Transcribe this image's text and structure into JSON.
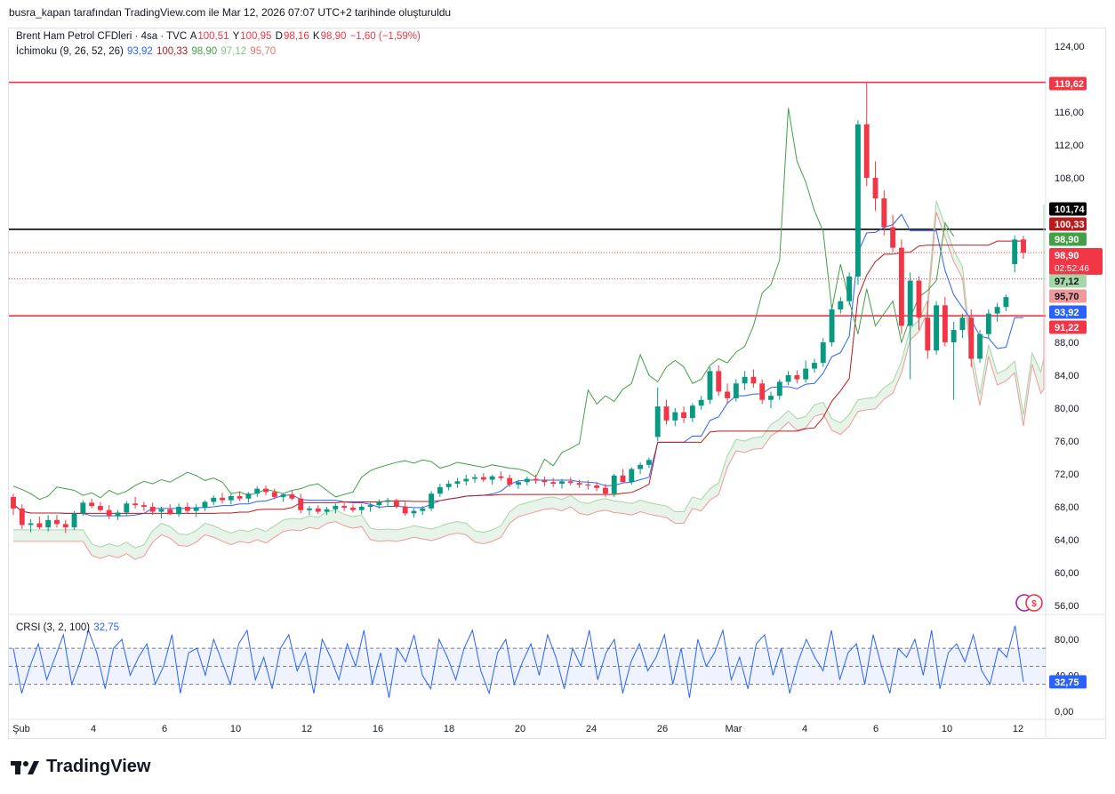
{
  "header": {
    "text": "busra_kapan tarafından TradingView.com ile Mar 12, 2026 07:07 UTC+2 tarihinde oluşturuldu"
  },
  "legend": {
    "symbol": "Brent Ham Petrol CFDleri · 4sa · TVC",
    "open_label": "A",
    "open": "100,51",
    "high_label": "Y",
    "high": "100,95",
    "low_label": "D",
    "low": "98,16",
    "close_label": "K",
    "close": "98,90",
    "change": "−1,60 (−1,59%)",
    "ichimoku_name": "İchimoku (9, 26, 52, 26)",
    "ichimoku_values": [
      "93,92",
      "100,33",
      "98,90",
      "97,12",
      "95,70"
    ]
  },
  "crsi_legend": {
    "name": "CRSI (3, 2, 100)",
    "value": "32,75"
  },
  "colors": {
    "up": "#089981",
    "down": "#f23645",
    "conversion": "#2962ff",
    "base": "#b71c1c",
    "lagging": "#43a047",
    "span_a": "#a5d6a7",
    "span_b": "#ef9a9a",
    "crsi": "#2962ff",
    "hline_red": "#f23645",
    "hline_black": "#000000"
  },
  "price_axis": {
    "ticks": [
      "124,00",
      "116,00",
      "112,00",
      "108,00",
      "88,00",
      "84,00",
      "80,00",
      "76,00",
      "72,00",
      "68,00",
      "64,00",
      "60,00",
      "56,00"
    ]
  },
  "crsi_axis": {
    "ticks": [
      "80,00",
      "40,00",
      "0,00"
    ]
  },
  "badges": [
    {
      "value": "119,62",
      "bg": "#f23645",
      "fg": "#ffffff"
    },
    {
      "value": "101,74",
      "bg": "#000000",
      "fg": "#ffffff"
    },
    {
      "value": "100,33",
      "bg": "#b71c1c",
      "fg": "#ffffff"
    },
    {
      "value": "98,90",
      "bg": "#43a047",
      "fg": "#ffffff"
    },
    {
      "value": "98,90",
      "bg": "#f23645",
      "fg": "#ffffff",
      "sub": "02:52:46"
    },
    {
      "value": "97,12",
      "bg": "#a5d6a7",
      "fg": "#131722"
    },
    {
      "value": "95,70",
      "bg": "#ef9a9a",
      "fg": "#131722"
    },
    {
      "value": "93,92",
      "bg": "#2962ff",
      "fg": "#ffffff"
    },
    {
      "value": "91,22",
      "bg": "#f23645",
      "fg": "#ffffff"
    }
  ],
  "crsi_badge": {
    "value": "32,75"
  },
  "x_axis": {
    "labels": [
      "Şub",
      "4",
      "6",
      "10",
      "12",
      "16",
      "18",
      "20",
      "24",
      "26",
      "Mar",
      "4",
      "6",
      "10",
      "12"
    ]
  },
  "chart_data": {
    "type": "candlestick",
    "symbol": "Brent Ham Petrol CFDleri",
    "timeframe": "4sa",
    "y_range": [
      54,
      126
    ],
    "horizontal_lines": [
      {
        "price": 119.62,
        "color": "#f23645",
        "style": "solid"
      },
      {
        "price": 101.74,
        "color": "#000000",
        "style": "solid"
      },
      {
        "price": 91.22,
        "color": "#f23645",
        "style": "solid"
      },
      {
        "price": 98.9,
        "color": "#f23645",
        "style": "dotted"
      },
      {
        "price": 95.7,
        "color": "#f23645",
        "style": "dotted"
      }
    ],
    "candles": [
      [
        69.2,
        69.6,
        67.0,
        67.8
      ],
      [
        67.8,
        68.3,
        65.3,
        65.8
      ],
      [
        65.8,
        66.5,
        64.9,
        66.0
      ],
      [
        66.0,
        66.8,
        65.3,
        65.5
      ],
      [
        65.5,
        67.0,
        65.0,
        66.4
      ],
      [
        66.4,
        67.0,
        65.5,
        65.9
      ],
      [
        65.9,
        66.4,
        64.8,
        65.5
      ],
      [
        65.5,
        67.5,
        65.2,
        67.2
      ],
      [
        67.2,
        68.8,
        66.9,
        68.5
      ],
      [
        68.5,
        69.0,
        67.8,
        68.1
      ],
      [
        68.1,
        68.6,
        67.4,
        67.6
      ],
      [
        67.6,
        68.2,
        66.5,
        66.9
      ],
      [
        66.9,
        67.6,
        66.4,
        67.3
      ],
      [
        67.3,
        68.7,
        66.9,
        68.4
      ],
      [
        68.4,
        69.2,
        67.8,
        68.2
      ],
      [
        68.2,
        68.6,
        67.5,
        68.0
      ],
      [
        68.0,
        68.5,
        67.0,
        67.4
      ],
      [
        67.4,
        68.0,
        66.6,
        67.7
      ],
      [
        67.7,
        68.3,
        67.0,
        67.1
      ],
      [
        67.1,
        68.4,
        66.8,
        68.0
      ],
      [
        68.0,
        68.5,
        67.2,
        67.5
      ],
      [
        67.5,
        68.3,
        66.8,
        67.9
      ],
      [
        67.9,
        68.8,
        67.5,
        68.6
      ],
      [
        68.6,
        69.4,
        68.2,
        69.1
      ],
      [
        69.1,
        69.7,
        68.4,
        68.8
      ],
      [
        68.8,
        69.6,
        68.3,
        69.3
      ],
      [
        69.3,
        69.9,
        68.7,
        69.0
      ],
      [
        69.0,
        69.8,
        68.5,
        69.6
      ],
      [
        69.6,
        70.5,
        69.2,
        70.2
      ],
      [
        70.2,
        70.6,
        69.4,
        69.8
      ],
      [
        69.8,
        70.2,
        68.9,
        69.2
      ],
      [
        69.2,
        69.7,
        68.6,
        69.5
      ],
      [
        69.5,
        70.0,
        68.8,
        69.0
      ],
      [
        69.0,
        69.6,
        67.2,
        67.6
      ],
      [
        67.6,
        68.1,
        67.0,
        67.8
      ],
      [
        67.8,
        68.2,
        67.1,
        67.4
      ],
      [
        67.4,
        68.0,
        67.0,
        67.7
      ],
      [
        67.7,
        68.4,
        67.2,
        68.1
      ],
      [
        68.1,
        68.6,
        67.5,
        67.9
      ],
      [
        67.9,
        68.3,
        67.3,
        67.6
      ],
      [
        67.6,
        68.3,
        67.1,
        68.0
      ],
      [
        68.0,
        68.5,
        67.4,
        68.2
      ],
      [
        68.2,
        68.9,
        67.8,
        68.6
      ],
      [
        68.6,
        69.1,
        68.0,
        68.8
      ],
      [
        68.8,
        69.0,
        67.8,
        68.0
      ],
      [
        68.0,
        68.6,
        66.9,
        67.2
      ],
      [
        67.2,
        67.8,
        66.7,
        67.5
      ],
      [
        67.5,
        68.1,
        67.0,
        67.8
      ],
      [
        67.8,
        69.9,
        67.5,
        69.6
      ],
      [
        69.6,
        70.8,
        69.2,
        70.4
      ],
      [
        70.4,
        71.2,
        70.0,
        70.8
      ],
      [
        70.8,
        71.5,
        70.3,
        71.1
      ],
      [
        71.1,
        71.9,
        70.6,
        71.4
      ],
      [
        71.4,
        72.0,
        70.9,
        71.6
      ],
      [
        71.6,
        72.1,
        71.0,
        71.3
      ],
      [
        71.3,
        71.9,
        70.7,
        71.7
      ],
      [
        71.7,
        72.3,
        71.2,
        71.5
      ],
      [
        71.5,
        71.9,
        70.4,
        70.7
      ],
      [
        70.7,
        71.3,
        70.2,
        71.0
      ],
      [
        71.0,
        71.7,
        70.6,
        71.4
      ],
      [
        71.4,
        71.9,
        70.8,
        71.2
      ],
      [
        71.2,
        71.7,
        70.5,
        71.0
      ],
      [
        71.0,
        71.5,
        70.4,
        70.8
      ],
      [
        70.8,
        71.4,
        70.2,
        71.1
      ],
      [
        71.1,
        71.6,
        70.6,
        70.9
      ],
      [
        70.9,
        71.3,
        70.3,
        70.7
      ],
      [
        70.7,
        71.2,
        70.1,
        70.6
      ],
      [
        70.6,
        71.0,
        69.9,
        70.3
      ],
      [
        70.3,
        70.8,
        69.2,
        69.6
      ],
      [
        69.6,
        72.0,
        69.2,
        71.8
      ],
      [
        71.8,
        72.6,
        71.4,
        71.0
      ],
      [
        71.0,
        72.8,
        70.7,
        72.6
      ],
      [
        72.6,
        73.4,
        72.0,
        73.1
      ],
      [
        73.1,
        74.0,
        72.7,
        73.7
      ],
      [
        76.5,
        82.5,
        76.0,
        80.2
      ],
      [
        80.2,
        81.0,
        78.0,
        78.5
      ],
      [
        78.5,
        80.0,
        77.8,
        79.5
      ],
      [
        79.5,
        80.2,
        78.2,
        78.8
      ],
      [
        78.8,
        80.6,
        78.3,
        80.3
      ],
      [
        80.3,
        81.5,
        79.8,
        81.0
      ],
      [
        81.0,
        85.0,
        80.5,
        84.5
      ],
      [
        84.5,
        85.2,
        81.5,
        82.0
      ],
      [
        82.0,
        83.0,
        80.5,
        81.2
      ],
      [
        81.2,
        83.5,
        80.8,
        83.0
      ],
      [
        83.0,
        84.5,
        82.2,
        83.8
      ],
      [
        83.8,
        84.7,
        82.5,
        83.0
      ],
      [
        83.0,
        83.5,
        80.5,
        81.0
      ],
      [
        81.0,
        82.0,
        80.0,
        81.5
      ],
      [
        81.5,
        83.5,
        81.0,
        83.2
      ],
      [
        83.2,
        84.5,
        82.8,
        84.0
      ],
      [
        84.0,
        84.6,
        83.0,
        83.5
      ],
      [
        83.5,
        85.8,
        83.1,
        84.8
      ],
      [
        84.8,
        86.0,
        84.3,
        85.5
      ],
      [
        85.5,
        88.5,
        85.0,
        88.0
      ],
      [
        88.0,
        92.5,
        87.5,
        92.0
      ],
      [
        92.0,
        93.5,
        91.5,
        93.0
      ],
      [
        93.0,
        96.5,
        92.5,
        96.0
      ],
      [
        96.0,
        115.0,
        95.0,
        114.5
      ],
      [
        114.5,
        119.62,
        107.0,
        108.0
      ],
      [
        108.0,
        110.0,
        104.0,
        105.5
      ],
      [
        105.5,
        106.5,
        101.0,
        102.0
      ],
      [
        102.0,
        103.5,
        99.0,
        99.5
      ],
      [
        99.5,
        100.5,
        89.0,
        90.0
      ],
      [
        90.0,
        96.5,
        83.5,
        95.5
      ],
      [
        95.5,
        96.0,
        89.5,
        91.0
      ],
      [
        91.0,
        93.0,
        86.0,
        87.0
      ],
      [
        87.0,
        93.0,
        86.5,
        92.5
      ],
      [
        92.5,
        93.5,
        87.5,
        88.0
      ],
      [
        88.0,
        90.5,
        81.0,
        89.5
      ],
      [
        89.5,
        91.5,
        88.5,
        91.0
      ],
      [
        91.0,
        92.0,
        85.0,
        86.0
      ],
      [
        86.0,
        89.5,
        85.5,
        89.0
      ],
      [
        89.0,
        92.0,
        88.5,
        91.5
      ],
      [
        91.5,
        92.8,
        90.5,
        92.3
      ],
      [
        92.3,
        93.8,
        91.8,
        93.5
      ],
      [
        97.5,
        101.0,
        96.5,
        100.5
      ],
      [
        100.51,
        100.95,
        98.16,
        98.9
      ]
    ],
    "ichimoku": {
      "params": [
        9,
        26,
        52,
        26
      ],
      "conversion_line": 93.92,
      "base_line": 100.33,
      "lagging_span": 98.9,
      "leading_span_a": 97.12,
      "leading_span_b": 95.7
    },
    "crsi": {
      "params": [
        3,
        2,
        100
      ],
      "last": 32.75,
      "band": [
        30,
        70
      ],
      "values": [
        70,
        20,
        50,
        75,
        35,
        60,
        85,
        30,
        55,
        90,
        65,
        25,
        70,
        80,
        40,
        60,
        75,
        30,
        50,
        85,
        20,
        65,
        70,
        40,
        80,
        55,
        30,
        75,
        90,
        35,
        60,
        25,
        70,
        85,
        45,
        65,
        20,
        80,
        60,
        35,
        75,
        50,
        90,
        30,
        65,
        15,
        70,
        55,
        85,
        40,
        25,
        80,
        60,
        35,
        70,
        90,
        45,
        20,
        65,
        80,
        30,
        55,
        75,
        40,
        85,
        60,
        25,
        70,
        50,
        90,
        35,
        65,
        80,
        20,
        55,
        75,
        45,
        60,
        85,
        30,
        70,
        15,
        80,
        50,
        65,
        90,
        35,
        60,
        25,
        75,
        85,
        40,
        70,
        20,
        55,
        80,
        60,
        45,
        90,
        35,
        65,
        75,
        30,
        85,
        50,
        20,
        70,
        60,
        80,
        40,
        90,
        25,
        65,
        75,
        55,
        85,
        45,
        30,
        70,
        60,
        95,
        32.75
      ]
    },
    "x_tick_labels": [
      "Şub",
      "4",
      "6",
      "10",
      "12",
      "16",
      "18",
      "20",
      "24",
      "26",
      "Mar",
      "4",
      "6",
      "10",
      "12"
    ]
  }
}
